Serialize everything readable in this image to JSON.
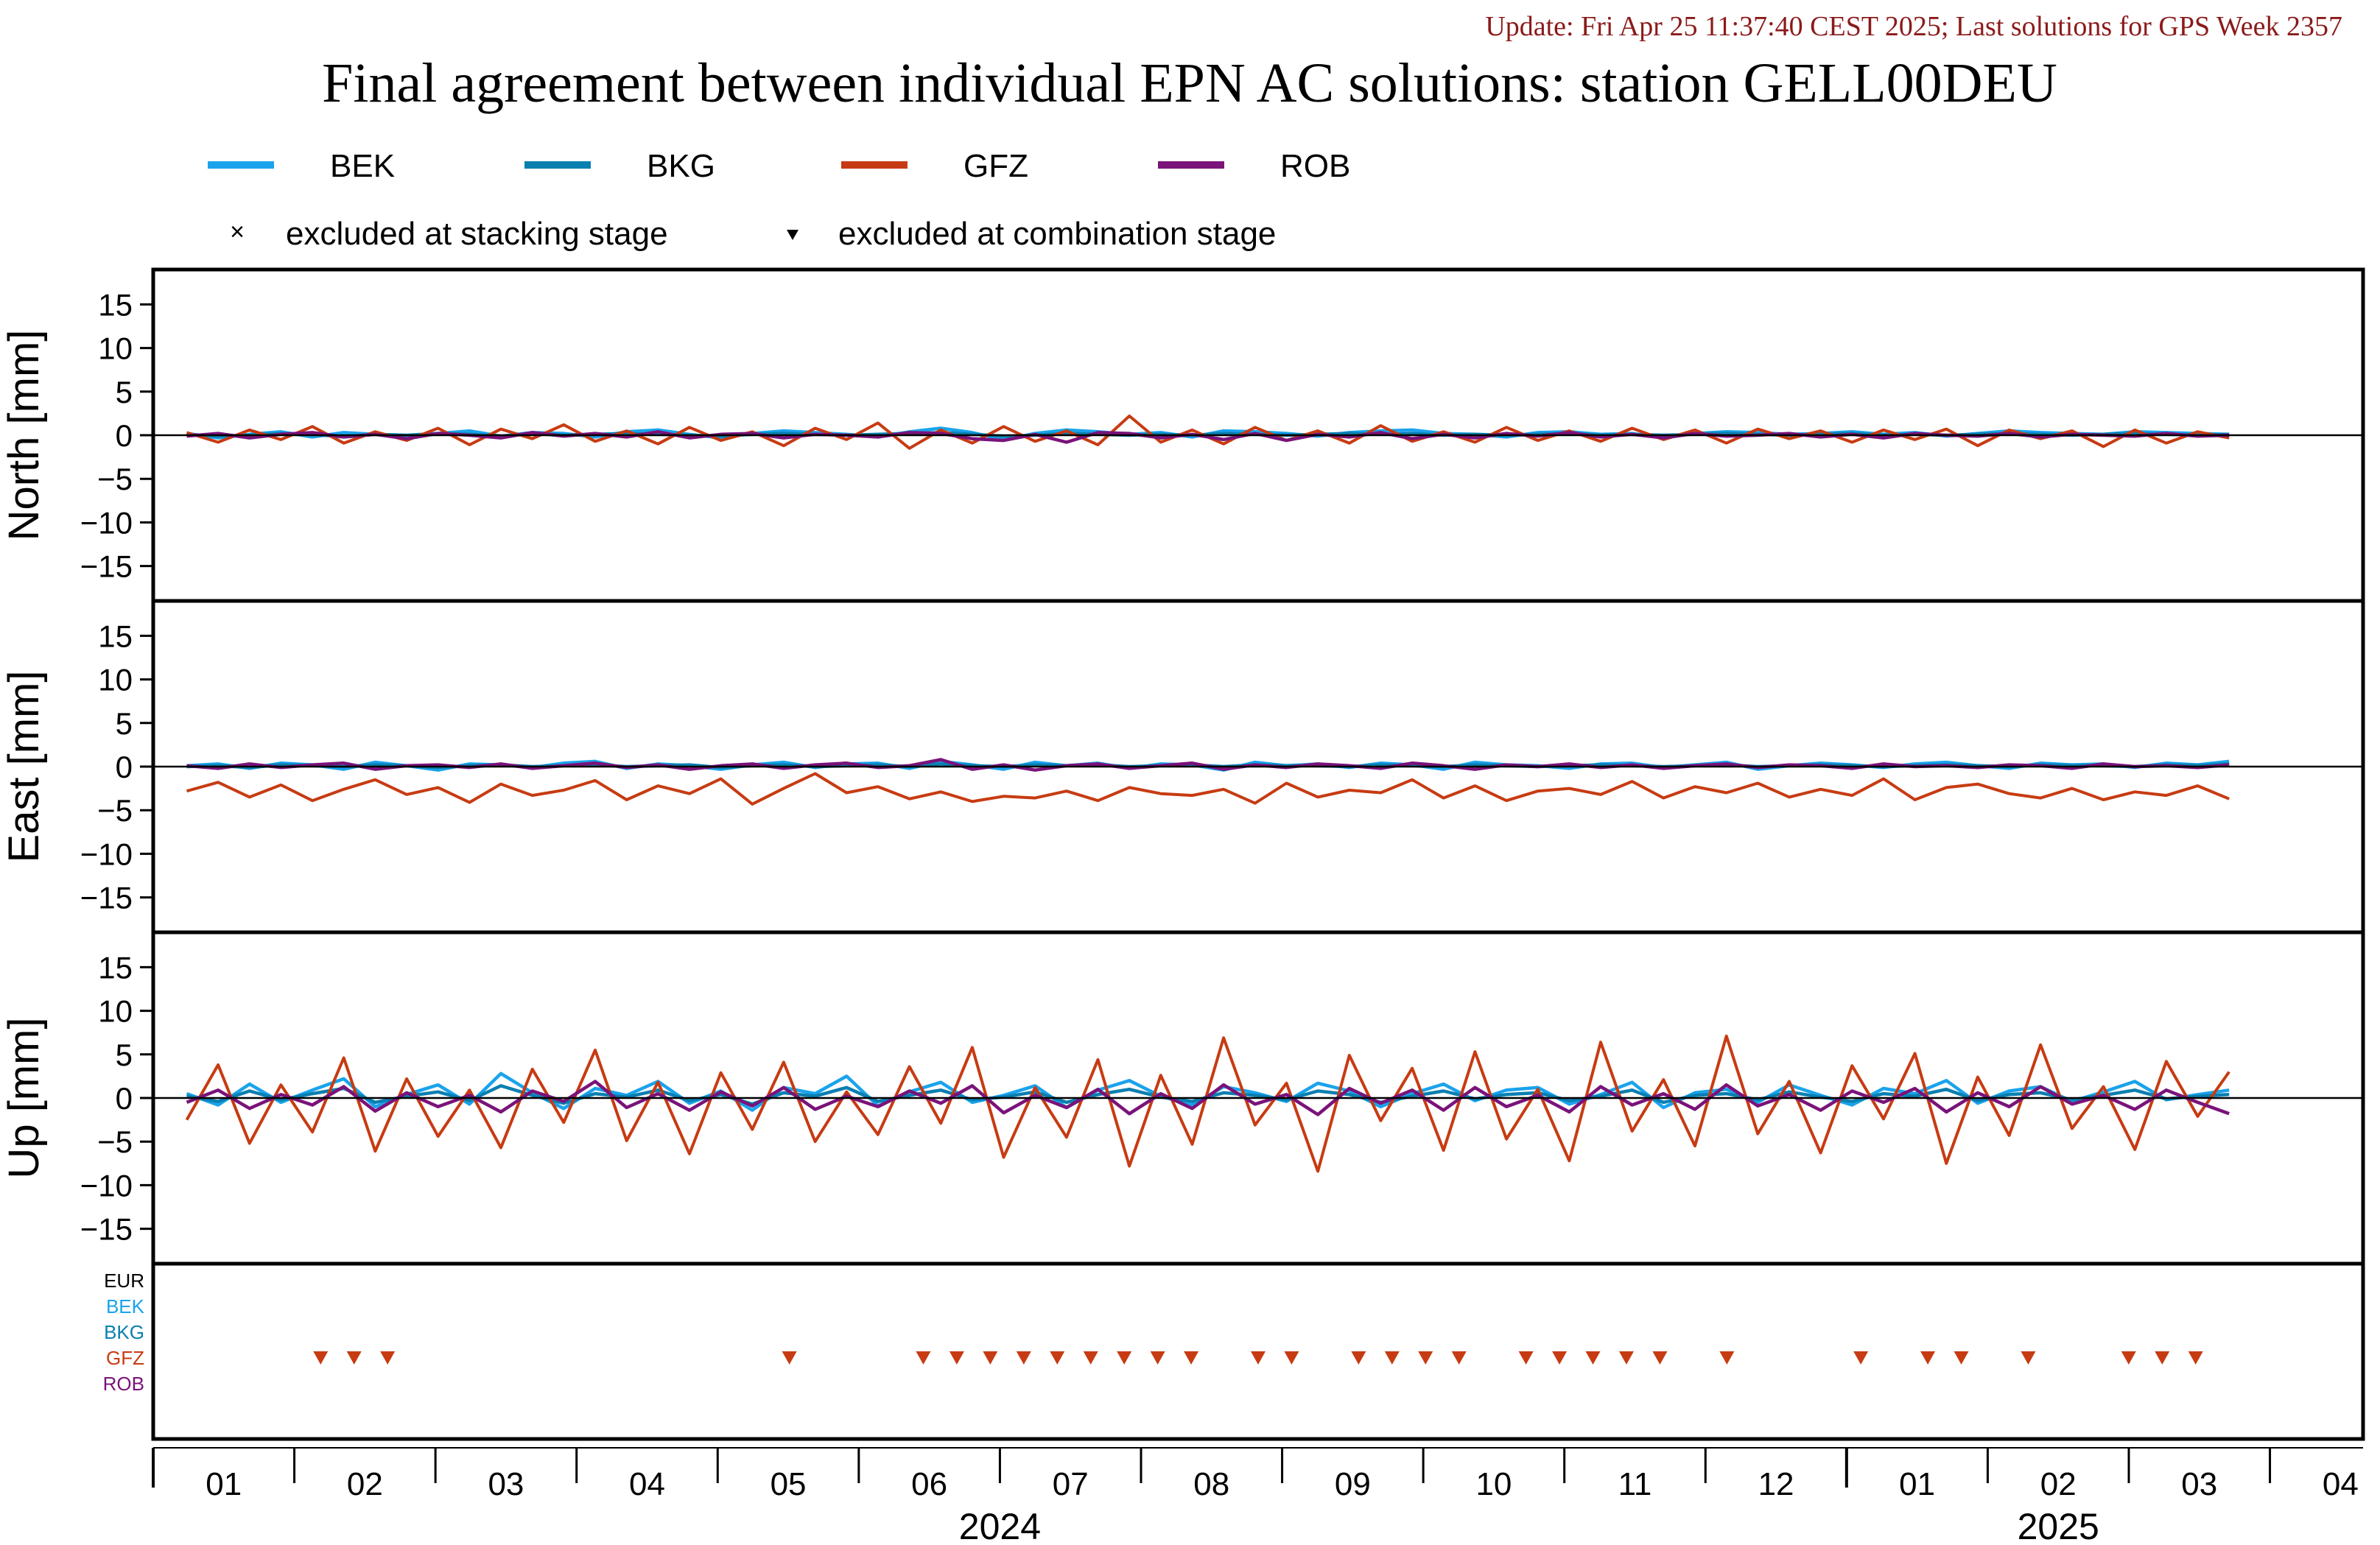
{
  "header": {
    "update_text": "Update: Fri Apr 25 11:37:40 CEST 2025; Last solutions for GPS Week 2357",
    "title": "Final agreement between individual EPN AC solutions: station GELL00DEU"
  },
  "colors": {
    "BEK": "#1aa3ec",
    "BKG": "#0a7fb0",
    "GFZ": "#c73b12",
    "ROB": "#7a137a",
    "EUR": "#000000",
    "update_text": "#8b1a1a"
  },
  "legend": {
    "series": [
      "BEK",
      "BKG",
      "GFZ",
      "ROB"
    ],
    "excluded_stacking": "excluded at stacking stage",
    "excluded_combination": "excluded at combination stage"
  },
  "exclusion_rows": [
    "EUR",
    "BEK",
    "BKG",
    "GFZ",
    "ROB"
  ],
  "chart_data": {
    "type": "line",
    "x_range_weeks": [
      2295,
      2361
    ],
    "panels": [
      {
        "ylabel": "North [mm]",
        "ylim": [
          -19,
          19
        ],
        "yticks": [
          15,
          10,
          5,
          0,
          -5,
          -10,
          -15
        ],
        "series": [
          {
            "name": "BEK",
            "values": [
              0.2,
              -0.3,
              0.1,
              0.4,
              -0.2,
              0.3,
              0.1,
              -0.4,
              0.2,
              0.5,
              -0.1,
              0.3,
              0.2,
              -0.2,
              0.4,
              0.6,
              0.1,
              -0.3,
              0.2,
              0.5,
              0.3,
              0.1,
              -0.2,
              0.4,
              0.8,
              0.3,
              -0.5,
              0.2,
              0.6,
              0.4,
              0.1,
              0.3,
              -0.2,
              0.5,
              0.4,
              0.2,
              -0.1,
              0.3,
              0.5,
              0.6,
              0.2,
              0.1,
              -0.2,
              0.3,
              0.4,
              0.1,
              0.2,
              -0.3,
              0.2,
              0.4,
              0.3,
              0.1,
              0.2,
              0.4,
              0.1,
              0.3,
              -0.1,
              0.2,
              0.5,
              0.3,
              0.2,
              0.1,
              0.4,
              0.3,
              0.2,
              0.1
            ]
          },
          {
            "name": "BKG",
            "values": [
              0.1,
              -0.1,
              0.0,
              0.2,
              0.1,
              -0.2,
              0.1,
              0.0,
              0.2,
              0.1,
              -0.1,
              0.2,
              0.0,
              0.1,
              0.2,
              0.1,
              0.0,
              -0.1,
              0.1,
              0.2,
              0.1,
              0.0,
              0.1,
              0.2,
              0.3,
              0.1,
              -0.1,
              0.0,
              0.2,
              0.1,
              0.0,
              0.1,
              0.0,
              0.2,
              0.1,
              0.0,
              0.1,
              0.2,
              0.1,
              0.2,
              0.0,
              0.1,
              0.0,
              0.1,
              0.2,
              0.0,
              0.1,
              0.0,
              0.1,
              0.2,
              0.1,
              0.0,
              0.1,
              0.2,
              0.0,
              0.1,
              0.0,
              0.1,
              0.2,
              0.1,
              0.0,
              0.1,
              0.2,
              0.1,
              0.0,
              0.1
            ]
          },
          {
            "name": "GFZ",
            "values": [
              0.3,
              -0.8,
              0.6,
              -0.5,
              1.0,
              -0.9,
              0.4,
              -0.6,
              0.8,
              -1.1,
              0.7,
              -0.4,
              1.2,
              -0.7,
              0.5,
              -1.0,
              0.9,
              -0.6,
              0.4,
              -1.2,
              0.8,
              -0.5,
              1.4,
              -1.5,
              0.6,
              -0.9,
              1.0,
              -0.7,
              0.5,
              -1.1,
              2.2,
              -0.8,
              0.6,
              -1.0,
              0.9,
              -0.6,
              0.5,
              -0.9,
              1.1,
              -0.7,
              0.4,
              -0.8,
              0.9,
              -0.6,
              0.5,
              -0.7,
              0.8,
              -0.5,
              0.6,
              -0.9,
              0.7,
              -0.4,
              0.5,
              -0.8,
              0.6,
              -0.5,
              0.7,
              -1.2,
              0.6,
              -0.4,
              0.5,
              -1.3,
              0.6,
              -0.9,
              0.4,
              -0.3
            ]
          },
          {
            "name": "ROB",
            "values": [
              -0.1,
              0.2,
              -0.3,
              0.1,
              0.3,
              -0.2,
              0.1,
              -0.4,
              0.2,
              0.0,
              -0.3,
              0.3,
              -0.1,
              0.2,
              -0.2,
              0.4,
              -0.3,
              0.1,
              0.2,
              -0.3,
              0.1,
              0.0,
              -0.2,
              0.3,
              0.2,
              -0.4,
              -0.6,
              0.1,
              -0.8,
              0.3,
              0.2,
              -0.3,
              0.1,
              -0.5,
              0.2,
              -0.6,
              0.1,
              -0.2,
              0.3,
              -0.4,
              0.1,
              -0.3,
              0.2,
              -0.1,
              0.3,
              -0.2,
              0.1,
              -0.3,
              0.2,
              -0.1,
              0.0,
              0.2,
              -0.2,
              0.1,
              -0.3,
              0.2,
              0.0,
              -0.1,
              0.2,
              -0.2,
              0.1,
              0.0,
              -0.1,
              0.2,
              -0.1,
              0.0
            ]
          }
        ]
      },
      {
        "ylabel": "East [mm]",
        "ylim": [
          -19,
          19
        ],
        "yticks": [
          15,
          10,
          5,
          0,
          -5,
          -10,
          -15
        ],
        "series": [
          {
            "name": "BEK",
            "values": [
              0.1,
              0.3,
              -0.2,
              0.4,
              0.2,
              -0.3,
              0.5,
              0.1,
              -0.4,
              0.3,
              0.2,
              -0.1,
              0.4,
              0.6,
              -0.2,
              0.3,
              0.1,
              -0.3,
              0.2,
              0.5,
              -0.1,
              0.3,
              0.4,
              -0.2,
              0.6,
              0.2,
              -0.3,
              0.5,
              0.1,
              0.4,
              -0.2,
              0.3,
              0.2,
              -0.4,
              0.5,
              0.1,
              0.3,
              -0.1,
              0.4,
              0.2,
              -0.3,
              0.5,
              0.2,
              0.1,
              -0.2,
              0.3,
              0.4,
              -0.1,
              0.2,
              0.5,
              -0.3,
              0.1,
              0.4,
              0.2,
              -0.1,
              0.3,
              0.5,
              0.1,
              -0.2,
              0.4,
              0.2,
              0.3,
              -0.1,
              0.4,
              0.2,
              0.6
            ]
          },
          {
            "name": "BKG",
            "values": [
              0.0,
              0.1,
              -0.1,
              0.2,
              0.1,
              0.0,
              0.2,
              0.1,
              -0.1,
              0.1,
              0.2,
              0.0,
              0.1,
              0.2,
              0.0,
              0.1,
              0.2,
              -0.1,
              0.1,
              0.2,
              0.0,
              0.1,
              0.2,
              0.0,
              0.3,
              0.1,
              0.0,
              0.2,
              0.1,
              0.2,
              0.0,
              0.1,
              0.2,
              0.0,
              0.2,
              0.1,
              0.1,
              0.0,
              0.2,
              0.1,
              0.0,
              0.2,
              0.1,
              0.0,
              0.1,
              0.2,
              0.1,
              0.0,
              0.1,
              0.2,
              0.0,
              0.1,
              0.2,
              0.1,
              0.0,
              0.1,
              0.2,
              0.1,
              0.0,
              0.2,
              0.1,
              0.1,
              0.0,
              0.2,
              0.1,
              0.3
            ]
          },
          {
            "name": "GFZ",
            "values": [
              -2.8,
              -1.8,
              -3.5,
              -2.1,
              -3.9,
              -2.6,
              -1.5,
              -3.2,
              -2.4,
              -4.1,
              -2.0,
              -3.3,
              -2.7,
              -1.6,
              -3.8,
              -2.2,
              -3.1,
              -1.4,
              -4.3,
              -2.5,
              -0.8,
              -3.0,
              -2.3,
              -3.7,
              -2.9,
              -4.0,
              -3.4,
              -3.6,
              -2.8,
              -3.9,
              -2.4,
              -3.1,
              -3.3,
              -2.6,
              -4.2,
              -1.9,
              -3.5,
              -2.7,
              -3.0,
              -1.5,
              -3.6,
              -2.2,
              -3.9,
              -2.8,
              -2.5,
              -3.2,
              -1.7,
              -3.6,
              -2.3,
              -3.0,
              -1.9,
              -3.5,
              -2.6,
              -3.3,
              -1.4,
              -3.8,
              -2.4,
              -2.0,
              -3.1,
              -3.6,
              -2.5,
              -3.8,
              -2.9,
              -3.3,
              -2.2,
              -3.7
            ]
          },
          {
            "name": "ROB",
            "values": [
              0.1,
              -0.2,
              0.3,
              -0.1,
              0.2,
              0.4,
              -0.3,
              0.1,
              0.2,
              -0.1,
              0.3,
              -0.2,
              0.1,
              0.4,
              -0.1,
              0.2,
              -0.3,
              0.1,
              0.3,
              -0.2,
              0.2,
              0.4,
              -0.1,
              0.1,
              0.8,
              -0.3,
              0.2,
              -0.4,
              0.1,
              0.3,
              -0.2,
              0.1,
              0.4,
              -0.3,
              0.2,
              -0.1,
              0.3,
              0.1,
              -0.2,
              0.4,
              0.1,
              -0.3,
              0.2,
              0.0,
              0.3,
              -0.1,
              0.2,
              -0.2,
              0.1,
              0.3,
              -0.1,
              0.2,
              0.1,
              -0.2,
              0.3,
              0.0,
              0.1,
              -0.1,
              0.2,
              0.1,
              -0.2,
              0.3,
              0.0,
              0.1,
              -0.1,
              0.2
            ]
          }
        ]
      },
      {
        "ylabel": "Up [mm]",
        "ylim": [
          -19,
          19
        ],
        "yticks": [
          15,
          10,
          5,
          0,
          -5,
          -10,
          -15
        ],
        "series": [
          {
            "name": "BEK",
            "values": [
              0.5,
              -0.8,
              1.6,
              -0.5,
              0.9,
              2.2,
              -1.0,
              0.4,
              1.5,
              -0.7,
              2.8,
              0.6,
              -1.2,
              1.1,
              0.3,
              1.9,
              -0.6,
              0.8,
              -1.4,
              1.2,
              0.5,
              2.5,
              -0.9,
              0.7,
              1.8,
              -0.5,
              0.3,
              1.4,
              -1.1,
              0.9,
              2.0,
              0.2,
              -0.8,
              1.3,
              0.6,
              -0.4,
              1.7,
              0.8,
              -1.0,
              0.5,
              1.6,
              -0.3,
              0.9,
              1.2,
              -0.7,
              0.4,
              1.8,
              -1.1,
              0.6,
              1.0,
              -0.5,
              1.5,
              0.3,
              -0.8,
              1.1,
              0.5,
              2.0,
              -0.6,
              0.8,
              1.3,
              -0.4,
              0.7,
              1.9,
              -0.2,
              0.4,
              0.9
            ]
          },
          {
            "name": "BKG",
            "values": [
              0.2,
              -0.4,
              0.8,
              -0.2,
              0.5,
              1.1,
              -0.5,
              0.2,
              0.7,
              -0.3,
              1.4,
              0.3,
              -0.6,
              0.5,
              0.1,
              0.9,
              -0.3,
              0.4,
              -0.7,
              0.6,
              0.2,
              1.2,
              -0.4,
              0.3,
              0.9,
              -0.2,
              0.1,
              0.7,
              -0.5,
              0.4,
              1.0,
              0.1,
              -0.4,
              0.6,
              0.3,
              -0.2,
              0.8,
              0.4,
              -0.5,
              0.2,
              0.8,
              -0.1,
              0.4,
              0.6,
              -0.3,
              0.2,
              0.9,
              -0.5,
              0.3,
              0.5,
              -0.2,
              0.7,
              0.1,
              -0.4,
              0.5,
              0.2,
              1.0,
              -0.3,
              0.4,
              0.6,
              -0.2,
              0.3,
              0.9,
              -0.1,
              0.2,
              0.4
            ]
          },
          {
            "name": "GFZ",
            "values": [
              -2.5,
              3.8,
              -5.2,
              1.5,
              -3.9,
              4.6,
              -6.1,
              2.2,
              -4.4,
              0.9,
              -5.7,
              3.3,
              -2.8,
              5.5,
              -4.9,
              1.8,
              -6.4,
              2.9,
              -3.6,
              4.1,
              -5.0,
              0.7,
              -4.2,
              3.6,
              -2.9,
              5.8,
              -6.8,
              1.2,
              -4.5,
              4.4,
              -7.8,
              2.6,
              -5.3,
              6.9,
              -3.1,
              1.7,
              -8.4,
              4.9,
              -2.6,
              3.4,
              -6.0,
              5.3,
              -4.7,
              1.0,
              -7.2,
              6.4,
              -3.8,
              2.1,
              -5.5,
              7.1,
              -4.1,
              1.9,
              -6.3,
              3.7,
              -2.4,
              5.1,
              -7.5,
              2.4,
              -4.3,
              6.1,
              -3.5,
              1.3,
              -5.9,
              4.2,
              -2.1,
              3.0
            ]
          },
          {
            "name": "ROB",
            "values": [
              -0.5,
              0.9,
              -1.2,
              0.4,
              -0.8,
              1.3,
              -1.5,
              0.6,
              -1.0,
              0.3,
              -1.6,
              0.8,
              -0.4,
              1.9,
              -1.1,
              0.5,
              -1.4,
              0.7,
              -0.9,
              1.2,
              -1.3,
              0.2,
              -1.0,
              0.8,
              -0.6,
              1.4,
              -1.7,
              0.3,
              -1.1,
              1.0,
              -1.8,
              0.5,
              -1.2,
              1.5,
              -0.7,
              0.4,
              -1.9,
              1.1,
              -0.6,
              0.9,
              -1.4,
              1.2,
              -1.0,
              0.3,
              -1.6,
              1.3,
              -0.8,
              0.5,
              -1.3,
              1.5,
              -0.9,
              0.4,
              -1.4,
              0.8,
              -0.5,
              1.1,
              -1.6,
              0.6,
              -1.0,
              1.3,
              -0.7,
              0.3,
              -1.3,
              0.9,
              -0.5,
              -1.8
            ]
          }
        ]
      }
    ],
    "exclusions_combination": {
      "series": "GFZ",
      "weeks": [
        2300,
        2301,
        2302,
        2314,
        2318,
        2319,
        2320,
        2321,
        2322,
        2323,
        2324,
        2325,
        2326,
        2328,
        2329,
        2331,
        2332,
        2333,
        2334,
        2336,
        2337,
        2338,
        2339,
        2340,
        2342,
        2346,
        2348,
        2349,
        2351,
        2354,
        2355,
        2356
      ]
    },
    "x_axis": {
      "month_ticks": [
        "01",
        "02",
        "03",
        "04",
        "05",
        "06",
        "07",
        "08",
        "09",
        "10",
        "11",
        "12",
        "01",
        "02",
        "03",
        "04"
      ],
      "year_labels": [
        "2024",
        "2025"
      ]
    }
  }
}
